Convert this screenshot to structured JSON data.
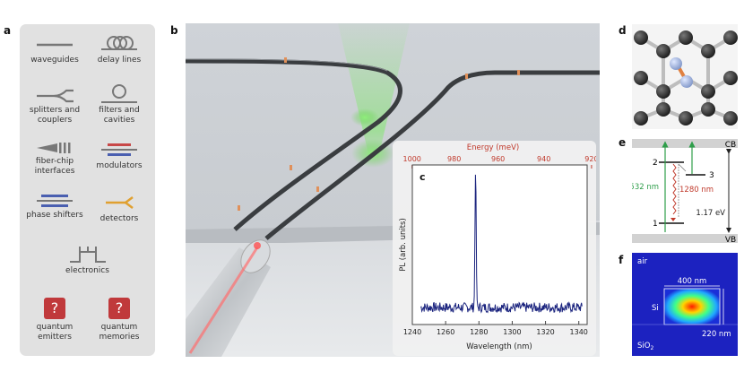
{
  "panel_labels": {
    "a": "a",
    "b": "b",
    "c": "c",
    "d": "d",
    "e": "e",
    "f": "f"
  },
  "components": [
    {
      "label": "waveguides",
      "icon": "waveguide-icon"
    },
    {
      "label": "delay lines",
      "icon": "delay-line-icon"
    },
    {
      "label": "splitters and couplers",
      "icon": "splitter-icon"
    },
    {
      "label": "filters and cavities",
      "icon": "ring-filter-icon"
    },
    {
      "label": "fiber-chip interfaces",
      "icon": "fiber-interface-icon"
    },
    {
      "label": "modulators",
      "icon": "modulator-icon"
    },
    {
      "label": "phase shifters",
      "icon": "phase-shifter-icon"
    },
    {
      "label": "detectors",
      "icon": "detector-icon"
    },
    {
      "label": "electronics",
      "icon": "electronics-icon"
    },
    {
      "label": "quantum emitters",
      "icon": "question-icon"
    },
    {
      "label": "quantum memories",
      "icon": "question-icon"
    }
  ],
  "question_mark": "?",
  "chart_data": {
    "type": "line",
    "xlabel": "Wavelength (nm)",
    "ylabel": "PL  (arb. units)",
    "top_axis_label": "Energy (meV)",
    "xlim": [
      1240,
      1345
    ],
    "xticks": [
      1240,
      1260,
      1280,
      1300,
      1320,
      1340
    ],
    "top_ticks": [
      1000,
      980,
      960,
      940,
      920
    ],
    "grid": false,
    "series": [
      {
        "peak_wavelength": 1278,
        "baseline": 0.12,
        "peak_height": 1.0
      }
    ]
  },
  "levels": {
    "cb": "CB",
    "vb": "VB",
    "level_1": "1",
    "level_2": "2",
    "level_3": "3",
    "pump": "532 nm",
    "emission": "1280 nm",
    "gap": "1.17 eV"
  },
  "mode": {
    "air": "air",
    "si": "Si",
    "sio2": "SiO",
    "sio2_sub": "2",
    "width": "400 nm",
    "height": "220 nm"
  },
  "colors": {
    "accent_red": "#c0392b",
    "spectrum": "#1a237e",
    "green": "#2e9e4a"
  }
}
